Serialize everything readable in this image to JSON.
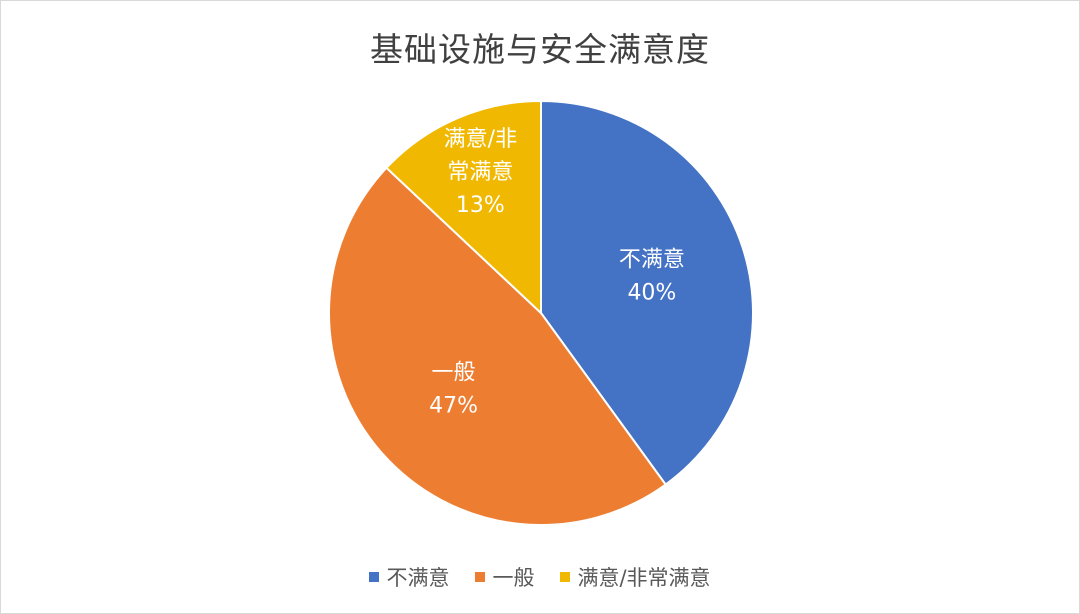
{
  "chart_data": {
    "type": "pie",
    "title": "基础设施与安全满意度",
    "categories": [
      "不满意",
      "一般",
      "满意/非常满意"
    ],
    "values": [
      40,
      47,
      13
    ],
    "value_labels": [
      "40%",
      "47%",
      "13%"
    ],
    "slice_label_lines": [
      [
        "不满意"
      ],
      [
        "一般"
      ],
      [
        "满意/非",
        "常满意"
      ]
    ],
    "colors": [
      "#4472C4",
      "#ED7D31",
      "#F0B800"
    ],
    "legend_position": "bottom",
    "start_angle": "top",
    "direction": "clockwise"
  }
}
